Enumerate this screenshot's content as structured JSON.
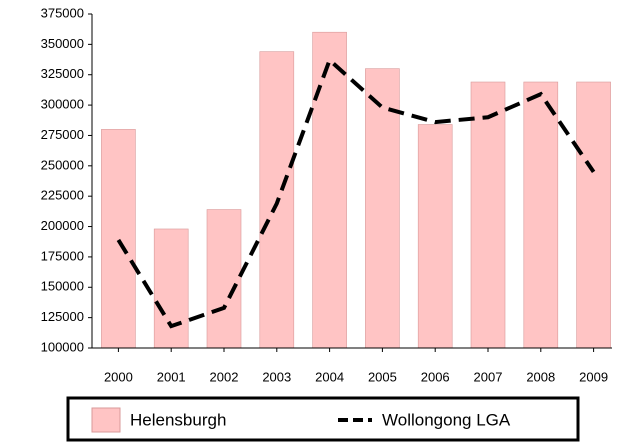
{
  "chart_data": {
    "type": "bar_line",
    "categories": [
      "2000",
      "2001",
      "2002",
      "2003",
      "2004",
      "2005",
      "2006",
      "2007",
      "2008",
      "2009"
    ],
    "series": [
      {
        "name": "Helensburgh",
        "type": "bar",
        "color": "#ffc4c4",
        "values": [
          280000,
          198000,
          214000,
          344000,
          360000,
          330000,
          284000,
          319000,
          319000,
          319000
        ]
      },
      {
        "name": "Wollongong LGA",
        "type": "line",
        "color": "#000000",
        "values": [
          189000,
          118000,
          133000,
          219000,
          337000,
          298000,
          286000,
          290000,
          309000,
          245000
        ]
      }
    ],
    "ylim": [
      100000,
      375000
    ],
    "yticks": [
      100000,
      125000,
      150000,
      175000,
      200000,
      225000,
      250000,
      275000,
      300000,
      325000,
      350000,
      375000
    ],
    "legend": "bottom"
  }
}
